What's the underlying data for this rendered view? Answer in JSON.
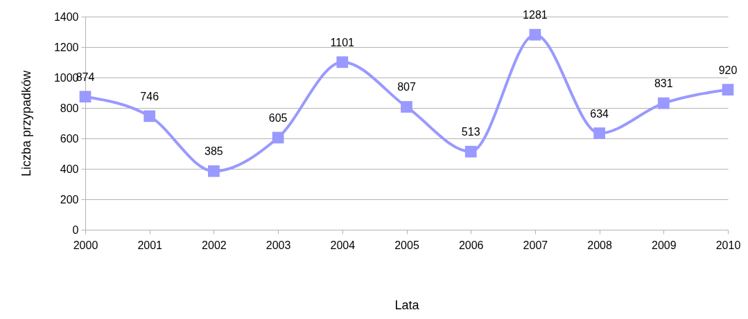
{
  "chart_data": {
    "type": "line",
    "xlabel": "Lata",
    "ylabel": "Liczba przypadków",
    "categories": [
      "2000",
      "2001",
      "2002",
      "2003",
      "2004",
      "2005",
      "2006",
      "2007",
      "2008",
      "2009",
      "2010"
    ],
    "series": [
      {
        "color": "#9999ff",
        "values": [
          874,
          746,
          385,
          605,
          1101,
          807,
          513,
          1281,
          634,
          831,
          920
        ]
      }
    ],
    "ylim": [
      0,
      1400
    ],
    "yticks": [
      0,
      200,
      400,
      600,
      800,
      1000,
      1200,
      1400
    ],
    "grid": "y",
    "marker": "square",
    "data_labels": true,
    "line_style": "solid"
  }
}
